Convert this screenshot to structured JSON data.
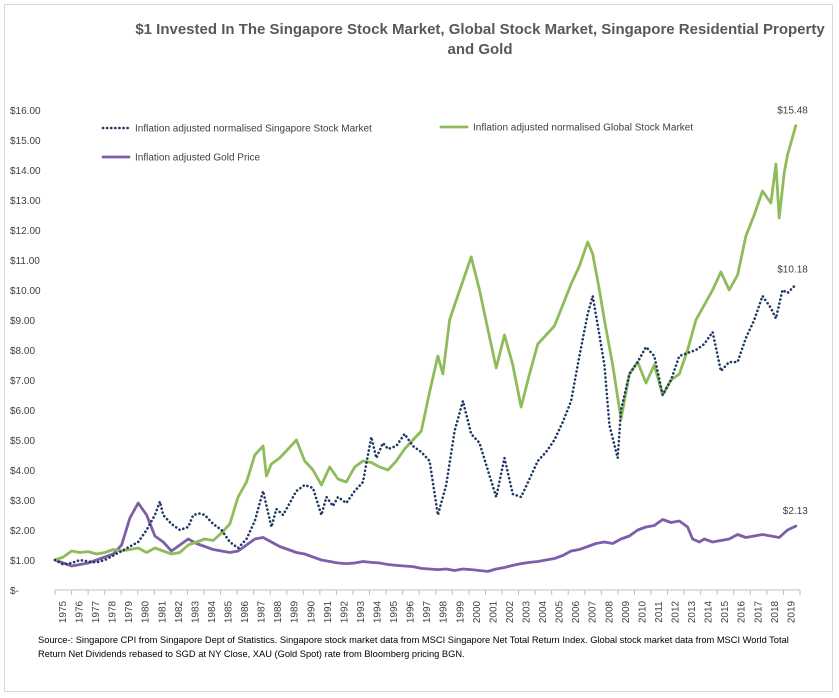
{
  "title": "$1 Invested In The Singapore Stock Market, Global Stock Market, Singapore Residential Property and Gold",
  "source": "Source-: Singapore CPI from Singapore Dept of Statistics. Singapore stock market data from MSCI Singapore Net Total Return Index. Global stock market data from MSCI World Total Return Net Dividends rebased to SGD at NY Close, XAU (Gold Spot) rate from Bloomberg pricing BGN.",
  "chart_data": {
    "type": "line",
    "title": "$1 Invested In The Singapore Stock Market, Global Stock Market, Singapore Residential Property and Gold",
    "xlabel": "",
    "ylabel": "",
    "xlim": [
      1975,
      2019.75
    ],
    "ylim": [
      0,
      16
    ],
    "y_ticks": [
      0,
      1,
      2,
      3,
      4,
      5,
      6,
      7,
      8,
      9,
      10,
      11,
      12,
      13,
      14,
      15,
      16
    ],
    "y_tick_labels": [
      "$-",
      "$1.00",
      "$2.00",
      "$3.00",
      "$4.00",
      "$5.00",
      "$6.00",
      "$7.00",
      "$8.00",
      "$9.00",
      "$10.00",
      "$11.00",
      "$12.00",
      "$13.00",
      "$14.00",
      "$15.00",
      "$16.00"
    ],
    "x_tick_labels": [
      "1975",
      "1976",
      "1977",
      "1978",
      "1979",
      "1980",
      "1981",
      "1982",
      "1983",
      "1984",
      "1985",
      "1986",
      "1987",
      "1988",
      "1989",
      "1990",
      "1991",
      "1992",
      "1993",
      "1994",
      "1995",
      "1996",
      "1997",
      "1998",
      "1999",
      "2000",
      "2001",
      "2002",
      "2003",
      "2004",
      "2005",
      "2006",
      "2007",
      "2008",
      "2009",
      "2010",
      "2011",
      "2012",
      "2013",
      "2014",
      "2015",
      "2016",
      "2017",
      "2018",
      "2019"
    ],
    "grid": false,
    "legend": "top",
    "series": [
      {
        "name": "Inflation adjusted normalised Singapore Stock Market",
        "color": "#1f3864",
        "style": "dotted",
        "end_label": "$10.18",
        "points": [
          [
            1975,
            1.0
          ],
          [
            1975.5,
            0.85
          ],
          [
            1976,
            0.9
          ],
          [
            1976.5,
            1.0
          ],
          [
            1977,
            0.95
          ],
          [
            1977.5,
            0.92
          ],
          [
            1978,
            1.0
          ],
          [
            1978.5,
            1.15
          ],
          [
            1979,
            1.3
          ],
          [
            1979.5,
            1.45
          ],
          [
            1980,
            1.6
          ],
          [
            1980.5,
            2.0
          ],
          [
            1981,
            2.5
          ],
          [
            1981.3,
            2.95
          ],
          [
            1981.5,
            2.5
          ],
          [
            1982,
            2.2
          ],
          [
            1982.5,
            2.0
          ],
          [
            1983,
            2.1
          ],
          [
            1983.3,
            2.5
          ],
          [
            1983.7,
            2.55
          ],
          [
            1984,
            2.5
          ],
          [
            1984.5,
            2.2
          ],
          [
            1985,
            2.0
          ],
          [
            1985.5,
            1.6
          ],
          [
            1986,
            1.4
          ],
          [
            1986.5,
            1.7
          ],
          [
            1987,
            2.3
          ],
          [
            1987.5,
            3.3
          ],
          [
            1988,
            2.1
          ],
          [
            1988.3,
            2.7
          ],
          [
            1988.7,
            2.5
          ],
          [
            1989,
            2.8
          ],
          [
            1989.5,
            3.3
          ],
          [
            1990,
            3.5
          ],
          [
            1990.5,
            3.4
          ],
          [
            1991,
            2.5
          ],
          [
            1991.3,
            3.1
          ],
          [
            1991.7,
            2.8
          ],
          [
            1992,
            3.1
          ],
          [
            1992.5,
            2.9
          ],
          [
            1993,
            3.3
          ],
          [
            1993.5,
            3.6
          ],
          [
            1994,
            5.1
          ],
          [
            1994.3,
            4.4
          ],
          [
            1994.7,
            4.9
          ],
          [
            1995,
            4.7
          ],
          [
            1995.5,
            4.8
          ],
          [
            1996,
            5.2
          ],
          [
            1996.5,
            4.8
          ],
          [
            1997,
            4.6
          ],
          [
            1997.5,
            4.3
          ],
          [
            1998,
            2.5
          ],
          [
            1998.5,
            3.5
          ],
          [
            1999,
            5.3
          ],
          [
            1999.5,
            6.3
          ],
          [
            2000,
            5.2
          ],
          [
            2000.5,
            4.9
          ],
          [
            2001,
            4.0
          ],
          [
            2001.5,
            3.1
          ],
          [
            2002,
            4.4
          ],
          [
            2002.5,
            3.2
          ],
          [
            2003,
            3.1
          ],
          [
            2003.5,
            3.7
          ],
          [
            2004,
            4.3
          ],
          [
            2004.5,
            4.6
          ],
          [
            2005,
            5.0
          ],
          [
            2005.5,
            5.6
          ],
          [
            2006,
            6.3
          ],
          [
            2006.5,
            7.8
          ],
          [
            2007,
            9.2
          ],
          [
            2007.3,
            9.8
          ],
          [
            2007.7,
            8.5
          ],
          [
            2008,
            7.5
          ],
          [
            2008.3,
            5.5
          ],
          [
            2008.8,
            4.4
          ],
          [
            2009,
            6.0
          ],
          [
            2009.5,
            7.2
          ],
          [
            2010,
            7.6
          ],
          [
            2010.5,
            8.1
          ],
          [
            2011,
            7.8
          ],
          [
            2011.5,
            6.5
          ],
          [
            2012,
            7.0
          ],
          [
            2012.5,
            7.8
          ],
          [
            2013,
            7.9
          ],
          [
            2013.5,
            8.0
          ],
          [
            2014,
            8.2
          ],
          [
            2014.5,
            8.6
          ],
          [
            2015,
            7.3
          ],
          [
            2015.5,
            7.6
          ],
          [
            2016,
            7.6
          ],
          [
            2016.5,
            8.4
          ],
          [
            2017,
            9.0
          ],
          [
            2017.5,
            9.8
          ],
          [
            2018,
            9.4
          ],
          [
            2018.3,
            9.05
          ],
          [
            2018.7,
            10.0
          ],
          [
            2019,
            9.9
          ],
          [
            2019.5,
            10.18
          ]
        ]
      },
      {
        "name": "Inflation adjusted normalised Global Stock Market",
        "color": "#8fbc5a",
        "style": "solid",
        "end_label": "$15.48",
        "points": [
          [
            1975,
            1.0
          ],
          [
            1975.5,
            1.1
          ],
          [
            1976,
            1.3
          ],
          [
            1976.5,
            1.25
          ],
          [
            1977,
            1.28
          ],
          [
            1977.5,
            1.2
          ],
          [
            1978,
            1.25
          ],
          [
            1978.5,
            1.35
          ],
          [
            1979,
            1.3
          ],
          [
            1979.5,
            1.35
          ],
          [
            1980,
            1.4
          ],
          [
            1980.5,
            1.25
          ],
          [
            1981,
            1.4
          ],
          [
            1981.5,
            1.3
          ],
          [
            1982,
            1.2
          ],
          [
            1982.5,
            1.25
          ],
          [
            1983,
            1.5
          ],
          [
            1983.5,
            1.6
          ],
          [
            1984,
            1.7
          ],
          [
            1984.5,
            1.65
          ],
          [
            1985,
            1.9
          ],
          [
            1985.5,
            2.2
          ],
          [
            1986,
            3.1
          ],
          [
            1986.5,
            3.6
          ],
          [
            1987,
            4.5
          ],
          [
            1987.5,
            4.8
          ],
          [
            1987.7,
            3.8
          ],
          [
            1988,
            4.2
          ],
          [
            1988.5,
            4.4
          ],
          [
            1989,
            4.7
          ],
          [
            1989.5,
            5.0
          ],
          [
            1990,
            4.3
          ],
          [
            1990.5,
            4.0
          ],
          [
            1991,
            3.5
          ],
          [
            1991.5,
            4.1
          ],
          [
            1992,
            3.7
          ],
          [
            1992.5,
            3.6
          ],
          [
            1993,
            4.1
          ],
          [
            1993.5,
            4.3
          ],
          [
            1994,
            4.25
          ],
          [
            1994.5,
            4.1
          ],
          [
            1995,
            4.0
          ],
          [
            1995.5,
            4.3
          ],
          [
            1996,
            4.7
          ],
          [
            1996.5,
            5.0
          ],
          [
            1997,
            5.3
          ],
          [
            1997.5,
            6.6
          ],
          [
            1998,
            7.8
          ],
          [
            1998.3,
            7.2
          ],
          [
            1998.7,
            9.0
          ],
          [
            1999,
            9.5
          ],
          [
            1999.5,
            10.3
          ],
          [
            2000,
            11.1
          ],
          [
            2000.5,
            10.0
          ],
          [
            2001,
            8.7
          ],
          [
            2001.5,
            7.4
          ],
          [
            2002,
            8.5
          ],
          [
            2002.5,
            7.5
          ],
          [
            2003,
            6.1
          ],
          [
            2003.5,
            7.2
          ],
          [
            2004,
            8.2
          ],
          [
            2004.5,
            8.5
          ],
          [
            2005,
            8.8
          ],
          [
            2005.5,
            9.5
          ],
          [
            2006,
            10.2
          ],
          [
            2006.5,
            10.8
          ],
          [
            2007,
            11.6
          ],
          [
            2007.3,
            11.2
          ],
          [
            2007.7,
            10.0
          ],
          [
            2008,
            9.0
          ],
          [
            2008.5,
            7.5
          ],
          [
            2009,
            5.7
          ],
          [
            2009.5,
            7.2
          ],
          [
            2010,
            7.6
          ],
          [
            2010.5,
            6.9
          ],
          [
            2011,
            7.5
          ],
          [
            2011.5,
            6.5
          ],
          [
            2012,
            7.0
          ],
          [
            2012.5,
            7.2
          ],
          [
            2013,
            8.0
          ],
          [
            2013.5,
            9.0
          ],
          [
            2014,
            9.5
          ],
          [
            2014.5,
            10.0
          ],
          [
            2015,
            10.6
          ],
          [
            2015.5,
            10.0
          ],
          [
            2016,
            10.5
          ],
          [
            2016.5,
            11.8
          ],
          [
            2017,
            12.5
          ],
          [
            2017.5,
            13.3
          ],
          [
            2018,
            12.9
          ],
          [
            2018.3,
            14.2
          ],
          [
            2018.5,
            12.4
          ],
          [
            2018.8,
            13.9
          ],
          [
            2019,
            14.5
          ],
          [
            2019.5,
            15.48
          ]
        ]
      },
      {
        "name": "Inflation adjusted Gold Price",
        "color": "#7c5fa8",
        "style": "solid",
        "end_label": "$2.13",
        "points": [
          [
            1975,
            1.0
          ],
          [
            1975.5,
            0.9
          ],
          [
            1976,
            0.8
          ],
          [
            1976.5,
            0.85
          ],
          [
            1977,
            0.9
          ],
          [
            1977.5,
            1.0
          ],
          [
            1978,
            1.1
          ],
          [
            1978.5,
            1.2
          ],
          [
            1979,
            1.5
          ],
          [
            1979.5,
            2.4
          ],
          [
            1980,
            2.9
          ],
          [
            1980.5,
            2.5
          ],
          [
            1981,
            1.8
          ],
          [
            1981.5,
            1.6
          ],
          [
            1982,
            1.3
          ],
          [
            1982.5,
            1.5
          ],
          [
            1983,
            1.7
          ],
          [
            1983.5,
            1.55
          ],
          [
            1984,
            1.45
          ],
          [
            1984.5,
            1.35
          ],
          [
            1985,
            1.3
          ],
          [
            1985.5,
            1.25
          ],
          [
            1986,
            1.3
          ],
          [
            1986.5,
            1.5
          ],
          [
            1987,
            1.7
          ],
          [
            1987.5,
            1.75
          ],
          [
            1988,
            1.6
          ],
          [
            1988.5,
            1.45
          ],
          [
            1989,
            1.35
          ],
          [
            1989.5,
            1.25
          ],
          [
            1990,
            1.2
          ],
          [
            1990.5,
            1.1
          ],
          [
            1991,
            1.0
          ],
          [
            1991.5,
            0.95
          ],
          [
            1992,
            0.9
          ],
          [
            1992.5,
            0.88
          ],
          [
            1993,
            0.9
          ],
          [
            1993.5,
            0.95
          ],
          [
            1994,
            0.92
          ],
          [
            1994.5,
            0.9
          ],
          [
            1995,
            0.85
          ],
          [
            1995.5,
            0.82
          ],
          [
            1996,
            0.8
          ],
          [
            1996.5,
            0.78
          ],
          [
            1997,
            0.72
          ],
          [
            1997.5,
            0.7
          ],
          [
            1998,
            0.68
          ],
          [
            1998.5,
            0.7
          ],
          [
            1999,
            0.65
          ],
          [
            1999.5,
            0.7
          ],
          [
            2000,
            0.68
          ],
          [
            2000.5,
            0.65
          ],
          [
            2001,
            0.62
          ],
          [
            2001.5,
            0.7
          ],
          [
            2002,
            0.75
          ],
          [
            2002.5,
            0.82
          ],
          [
            2003,
            0.88
          ],
          [
            2003.5,
            0.92
          ],
          [
            2004,
            0.95
          ],
          [
            2004.5,
            1.0
          ],
          [
            2005,
            1.05
          ],
          [
            2005.5,
            1.15
          ],
          [
            2006,
            1.3
          ],
          [
            2006.5,
            1.35
          ],
          [
            2007,
            1.45
          ],
          [
            2007.5,
            1.55
          ],
          [
            2008,
            1.6
          ],
          [
            2008.5,
            1.55
          ],
          [
            2009,
            1.7
          ],
          [
            2009.5,
            1.8
          ],
          [
            2010,
            2.0
          ],
          [
            2010.5,
            2.1
          ],
          [
            2011,
            2.15
          ],
          [
            2011.5,
            2.35
          ],
          [
            2012,
            2.25
          ],
          [
            2012.5,
            2.3
          ],
          [
            2013,
            2.1
          ],
          [
            2013.3,
            1.7
          ],
          [
            2013.7,
            1.6
          ],
          [
            2014,
            1.7
          ],
          [
            2014.5,
            1.6
          ],
          [
            2015,
            1.65
          ],
          [
            2015.5,
            1.7
          ],
          [
            2016,
            1.85
          ],
          [
            2016.5,
            1.75
          ],
          [
            2017,
            1.8
          ],
          [
            2017.5,
            1.85
          ],
          [
            2018,
            1.8
          ],
          [
            2018.5,
            1.75
          ],
          [
            2019,
            2.0
          ],
          [
            2019.5,
            2.13
          ]
        ]
      }
    ]
  }
}
